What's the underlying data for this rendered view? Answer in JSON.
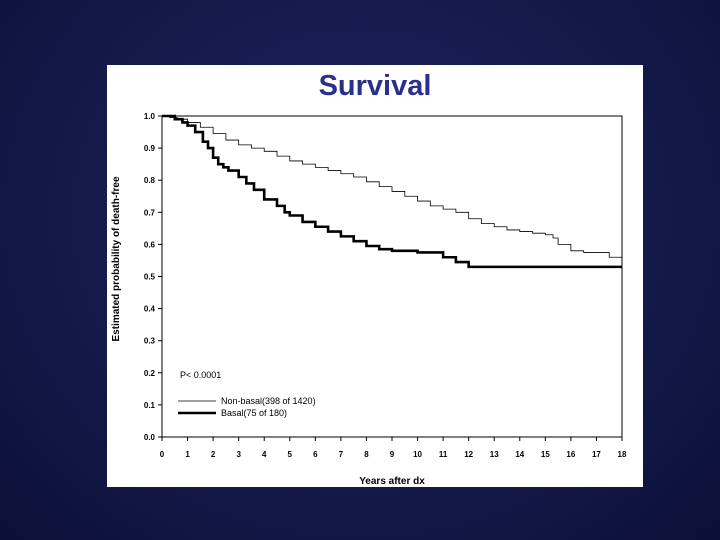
{
  "slide": {
    "title": "Survival",
    "colors": {
      "background": "#141a4a",
      "title": "#2a2f8f",
      "card": "#ffffff"
    }
  },
  "chart_data": {
    "type": "line",
    "xlabel": "Years after dx",
    "ylabel": "Estimated probability of death-free",
    "xlim": [
      0,
      18
    ],
    "ylim": [
      0.0,
      1.0
    ],
    "x_ticks": [
      0,
      1,
      2,
      3,
      4,
      5,
      6,
      7,
      8,
      9,
      10,
      11,
      12,
      13,
      14,
      15,
      16,
      17,
      18
    ],
    "y_ticks": [
      "0.0",
      "0.1",
      "0.2",
      "0.3",
      "0.4",
      "0.5",
      "0.6",
      "0.7",
      "0.8",
      "0.9",
      "1.0"
    ],
    "grid": false,
    "annotation": "P< 0.0001",
    "legend_position": "lower-left",
    "series": [
      {
        "name": "Non-basal(398 of 1420)",
        "style": "thin",
        "x": [
          0,
          0.3,
          0.6,
          1.0,
          1.5,
          2.0,
          2.5,
          3.0,
          3.5,
          4.0,
          4.5,
          5.0,
          5.5,
          6.0,
          6.5,
          7.0,
          7.5,
          8.0,
          8.5,
          9.0,
          9.5,
          10.0,
          10.5,
          11.0,
          11.5,
          12.0,
          12.5,
          13.0,
          13.5,
          14.0,
          14.5,
          15.0,
          15.3,
          15.5,
          16.0,
          16.5,
          17.0,
          17.5,
          18.0
        ],
        "y": [
          1.0,
          0.995,
          0.99,
          0.98,
          0.965,
          0.945,
          0.925,
          0.91,
          0.9,
          0.89,
          0.875,
          0.86,
          0.85,
          0.84,
          0.83,
          0.82,
          0.81,
          0.795,
          0.78,
          0.765,
          0.75,
          0.735,
          0.72,
          0.71,
          0.7,
          0.68,
          0.665,
          0.655,
          0.645,
          0.64,
          0.635,
          0.63,
          0.62,
          0.6,
          0.58,
          0.575,
          0.575,
          0.56,
          0.555
        ]
      },
      {
        "name": "Basal(75 of 180)",
        "style": "thick",
        "x": [
          0,
          0.5,
          0.8,
          1.0,
          1.3,
          1.6,
          1.8,
          2.0,
          2.2,
          2.4,
          2.6,
          3.0,
          3.3,
          3.6,
          4.0,
          4.5,
          4.8,
          5.0,
          5.5,
          6.0,
          6.5,
          7.0,
          7.5,
          8.0,
          8.5,
          9.0,
          10.0,
          11.0,
          11.5,
          12.0,
          14.0,
          16.0,
          18.0
        ],
        "y": [
          1.0,
          0.99,
          0.98,
          0.97,
          0.95,
          0.92,
          0.9,
          0.87,
          0.85,
          0.84,
          0.83,
          0.81,
          0.79,
          0.77,
          0.74,
          0.72,
          0.7,
          0.69,
          0.67,
          0.655,
          0.64,
          0.625,
          0.61,
          0.595,
          0.585,
          0.58,
          0.575,
          0.56,
          0.545,
          0.53,
          0.53,
          0.53,
          0.53
        ]
      }
    ]
  }
}
